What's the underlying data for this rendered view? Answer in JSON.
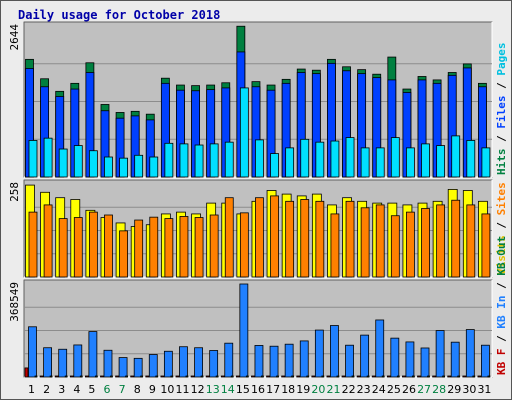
{
  "title": "Daily usage for October 2018",
  "colors": {
    "background": "#ececec",
    "panel": "#c0c0c0",
    "hits": "#008040",
    "files": "#0040ff",
    "pages": "#00e0ff",
    "visits": "#ffff00",
    "sites": "#ff8000",
    "kbin": "#2080ff",
    "kbout": "#008040",
    "kbf": "#c00000",
    "weekday_label": "#000000",
    "weekend_label": "#008040"
  },
  "panels": {
    "top": {
      "ymax_label": "2644",
      "legend": [
        {
          "text": "Hits",
          "color": "#008040"
        },
        {
          "text": " / ",
          "color": "#000000"
        },
        {
          "text": "Files",
          "color": "#0040ff"
        },
        {
          "text": " / ",
          "color": "#000000"
        },
        {
          "text": "Pages",
          "color": "#00c0e0"
        }
      ]
    },
    "middle": {
      "ymax_label": "258",
      "legend": [
        {
          "text": "Visits",
          "color": "#e0c000"
        },
        {
          "text": " / ",
          "color": "#000000"
        },
        {
          "text": "Sites",
          "color": "#ff8000"
        }
      ]
    },
    "bottom": {
      "ymax_label": "368549",
      "legend": [
        {
          "text": "KB F",
          "color": "#c00000"
        },
        {
          "text": " / ",
          "color": "#000000"
        },
        {
          "text": "KB In",
          "color": "#2080ff"
        },
        {
          "text": " / ",
          "color": "#000000"
        },
        {
          "text": "KB Out",
          "color": "#008040"
        }
      ]
    }
  },
  "chart_data": {
    "type": "bar",
    "categories": [
      "1",
      "2",
      "3",
      "4",
      "5",
      "6",
      "7",
      "8",
      "9",
      "10",
      "11",
      "12",
      "13",
      "14",
      "15",
      "16",
      "17",
      "18",
      "19",
      "20",
      "21",
      "22",
      "23",
      "24",
      "25",
      "26",
      "27",
      "28",
      "29",
      "30",
      "31"
    ],
    "weekend_days": [
      "6",
      "7",
      "13",
      "14",
      "20",
      "21",
      "27",
      "28"
    ],
    "panels": [
      {
        "name": "hits-files-pages",
        "ymax": 2644,
        "series": [
          {
            "name": "Hits",
            "values": [
              2060,
              1720,
              1500,
              1640,
              2000,
              1270,
              1130,
              1150,
              1100,
              1730,
              1610,
              1600,
              1610,
              1650,
              2640,
              1670,
              1610,
              1710,
              1890,
              1870,
              2060,
              1930,
              1880,
              1800,
              2100,
              1540,
              1760,
              1700,
              1830,
              1980,
              1640
            ]
          },
          {
            "name": "Files",
            "values": [
              1900,
              1580,
              1410,
              1540,
              1830,
              1160,
              1030,
              1070,
              1000,
              1640,
              1520,
              1510,
              1530,
              1560,
              2190,
              1580,
              1520,
              1640,
              1830,
              1810,
              1990,
              1860,
              1810,
              1740,
              1700,
              1480,
              1700,
              1640,
              1780,
              1910,
              1580
            ]
          },
          {
            "name": "Pages",
            "values": [
              640,
              680,
              490,
              550,
              460,
              350,
              330,
              380,
              350,
              590,
              580,
              560,
              580,
              610,
              1560,
              650,
              410,
              510,
              660,
              610,
              630,
              690,
              510,
              510,
              690,
              510,
              580,
              550,
              720,
              640,
              510
            ]
          }
        ]
      },
      {
        "name": "visits-sites",
        "ymax": 258,
        "series": [
          {
            "name": "Visits",
            "values": [
              255,
              235,
              220,
              215,
              185,
              165,
              150,
              140,
              145,
              175,
              180,
              175,
              205,
              205,
              175,
              210,
              240,
              230,
              225,
              230,
              200,
              220,
              210,
              205,
              205,
              200,
              205,
              210,
              243,
              240,
              210
            ]
          },
          {
            "name": "Sites",
            "values": [
              180,
              200,
              162,
              165,
              180,
              172,
              128,
              158,
              166,
              162,
              168,
              165,
              172,
              220,
              178,
              220,
              225,
              210,
              215,
              210,
              175,
              210,
              192,
              200,
              170,
              180,
              190,
              200,
              213,
              200,
              175
            ]
          }
        ]
      },
      {
        "name": "kb",
        "ymax": 368549,
        "series": [
          {
            "name": "KB F",
            "values": [
              36000,
              4000,
              4000,
              4000,
              4000,
              4000,
              4000,
              4000,
              4000,
              4000,
              4000,
              4000,
              4000,
              4000,
              4000,
              4000,
              4000,
              4000,
              4000,
              4000,
              4000,
              4000,
              4000,
              4000,
              4000,
              4000,
              4000,
              4000,
              4000,
              4000,
              4000
            ]
          },
          {
            "name": "KB In",
            "values": [
              199000,
              116000,
              110000,
              127000,
              180000,
              106000,
              77000,
              74000,
              89000,
              102000,
              120000,
              116000,
              105000,
              134000,
              368549,
              125000,
              122000,
              130000,
              143000,
              186000,
              204000,
              126000,
              166000,
              226000,
              154000,
              139000,
              115000,
              184000,
              138000,
              188000,
              126000
            ]
          },
          {
            "name": "KB Out",
            "values": [
              4000,
              3000,
              3000,
              3000,
              3000,
              3000,
              3000,
              3000,
              3000,
              3000,
              3000,
              3000,
              3000,
              3000,
              3000,
              3000,
              3000,
              3000,
              3000,
              3000,
              3000,
              3000,
              3000,
              3000,
              3000,
              3000,
              3000,
              3000,
              3000,
              3000,
              3000
            ]
          }
        ]
      }
    ],
    "grid": true
  }
}
